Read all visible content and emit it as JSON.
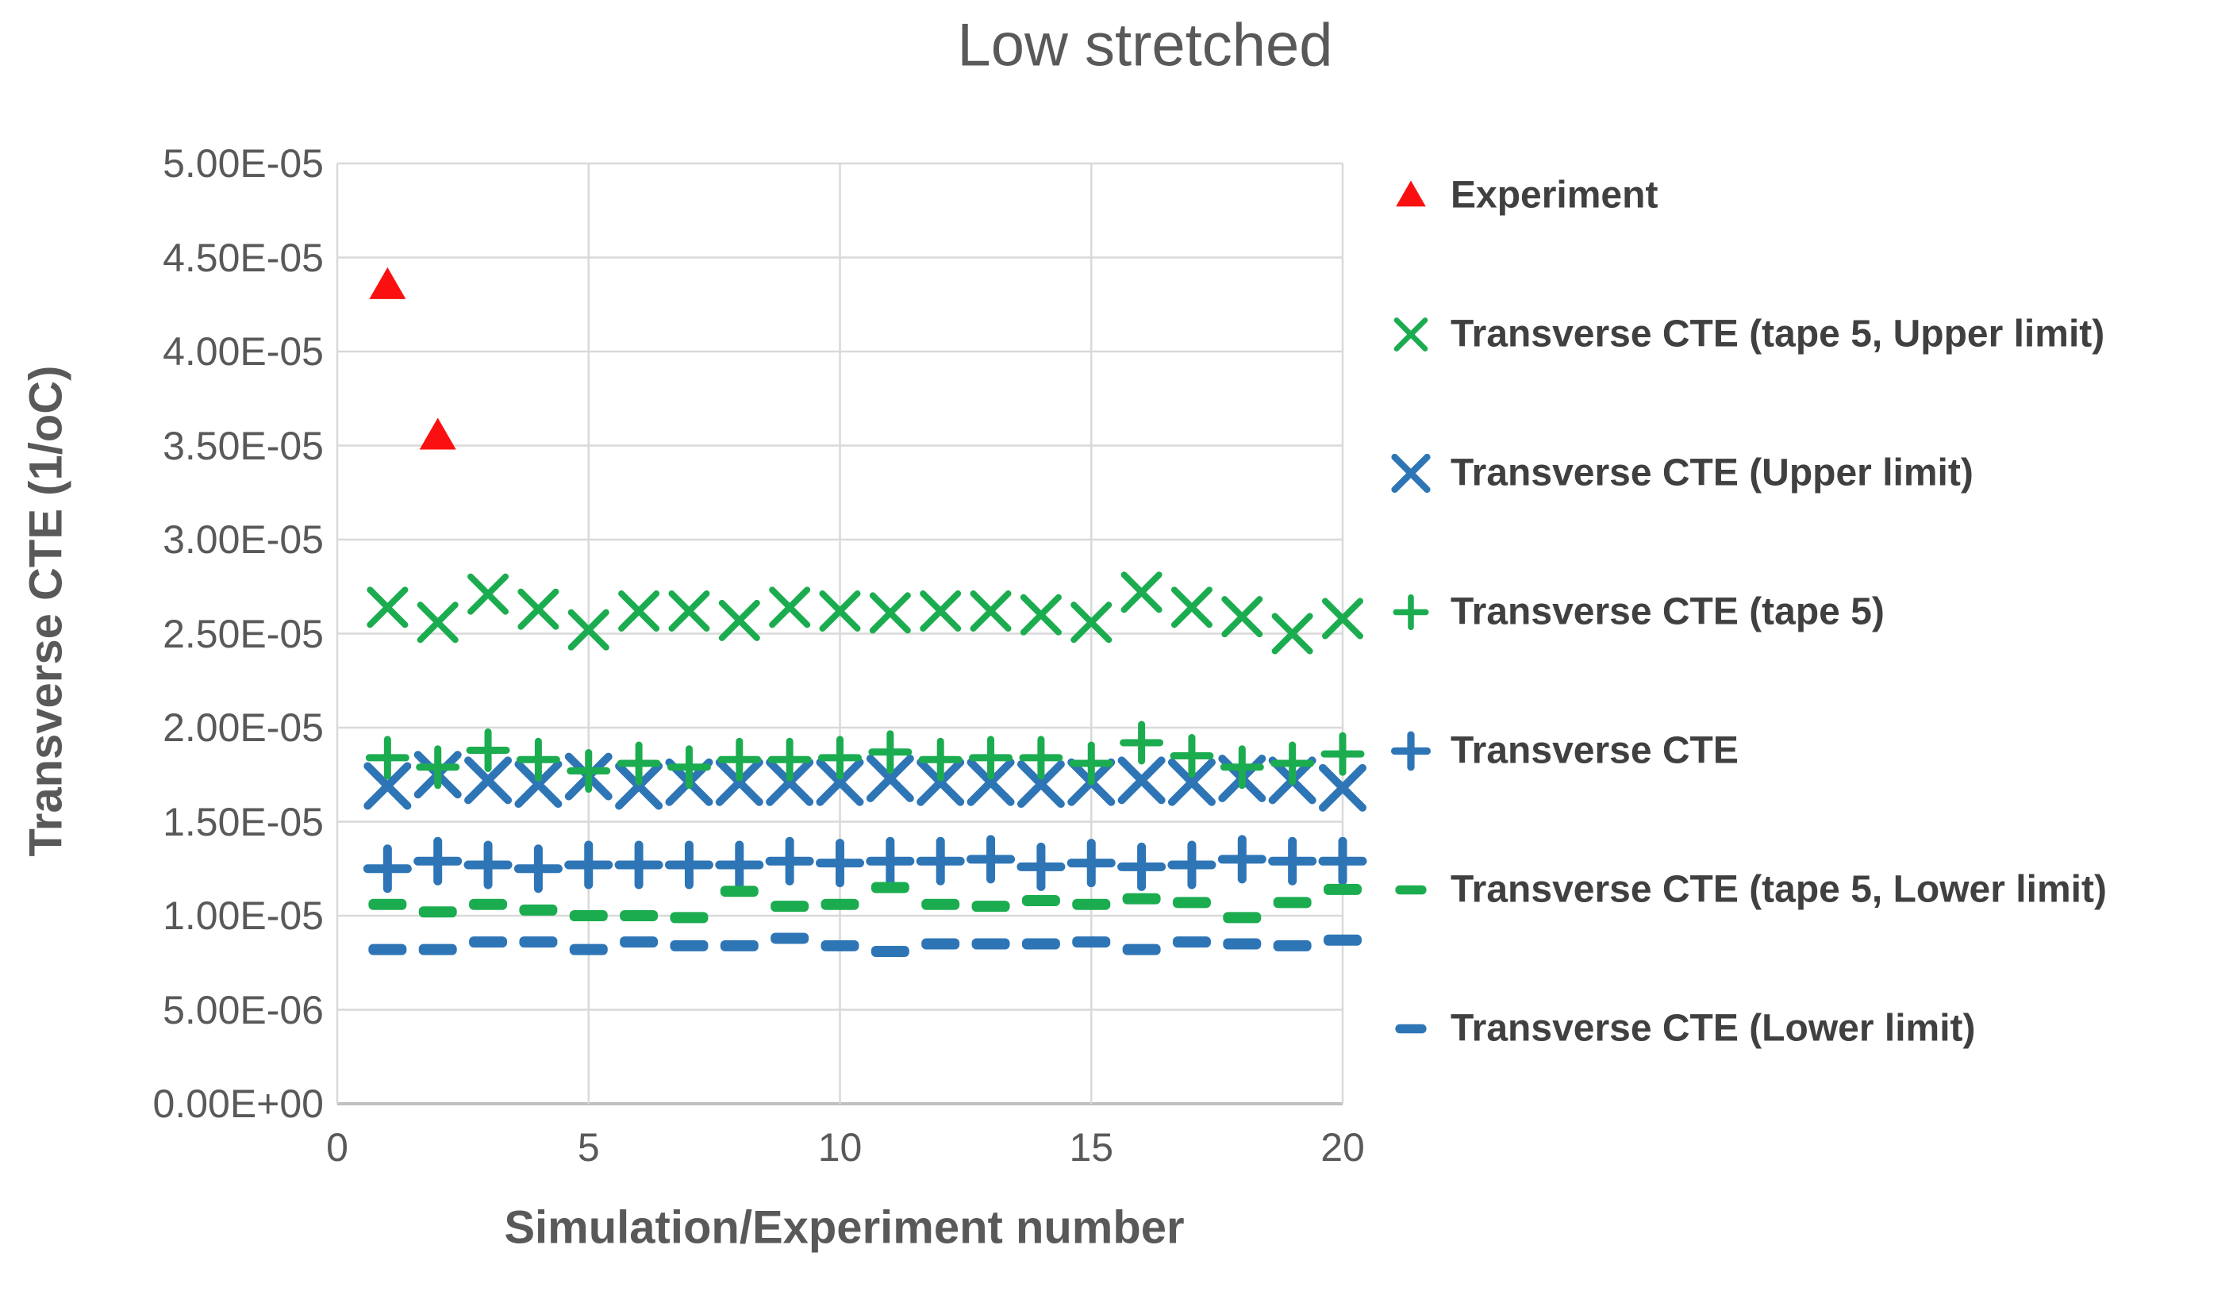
{
  "chart_data": {
    "type": "scatter",
    "title": "Low stretched",
    "xlabel": "Simulation/Experiment number",
    "ylabel": "Transverse CTE (1/oC)",
    "xlim": [
      0,
      20
    ],
    "ylim": [
      0,
      5e-05
    ],
    "y_value_unit": "1e-5 (1/oC)",
    "grid": true,
    "legend_position": "right",
    "xtick_values": [
      0,
      5,
      10,
      15,
      20
    ],
    "xtick_labels": [
      "0",
      "5",
      "10",
      "15",
      "20"
    ],
    "ytick_values_e5": [
      0,
      0.5,
      1,
      1.5,
      2,
      2.5,
      3,
      3.5,
      4,
      4.5,
      5
    ],
    "ytick_labels": [
      "0.00E+00",
      "5.00E-06",
      "1.00E-05",
      "1.50E-05",
      "2.00E-05",
      "2.50E-05",
      "3.00E-05",
      "3.50E-05",
      "4.00E-05",
      "4.50E-05",
      "5.00E-05"
    ],
    "series": [
      {
        "name": "Experiment",
        "marker": "triangle",
        "color": "#FA1010",
        "x": [
          1,
          2
        ],
        "y_e5": [
          4.35,
          3.55
        ]
      },
      {
        "name": "Transverse CTE (tape 5, Upper limit)",
        "marker": "x",
        "color": "#1CAC50",
        "x": [
          1,
          2,
          3,
          4,
          5,
          6,
          7,
          8,
          9,
          10,
          11,
          12,
          13,
          14,
          15,
          16,
          17,
          18,
          19,
          20
        ],
        "y_e5": [
          2.64,
          2.56,
          2.71,
          2.63,
          2.52,
          2.62,
          2.62,
          2.57,
          2.64,
          2.62,
          2.61,
          2.62,
          2.62,
          2.6,
          2.56,
          2.72,
          2.64,
          2.59,
          2.5,
          2.58
        ]
      },
      {
        "name": "Transverse CTE (Upper limit)",
        "marker": "x",
        "color": "#2E75B6",
        "x": [
          1,
          2,
          3,
          4,
          5,
          6,
          7,
          8,
          9,
          10,
          11,
          12,
          13,
          14,
          15,
          16,
          17,
          18,
          19,
          20
        ],
        "y_e5": [
          1.69,
          1.75,
          1.72,
          1.7,
          1.74,
          1.69,
          1.71,
          1.71,
          1.71,
          1.71,
          1.73,
          1.71,
          1.71,
          1.7,
          1.71,
          1.72,
          1.71,
          1.73,
          1.72,
          1.68
        ]
      },
      {
        "name": "Transverse CTE (tape 5)",
        "marker": "plus",
        "color": "#1CAC50",
        "x": [
          1,
          2,
          3,
          4,
          5,
          6,
          7,
          8,
          9,
          10,
          11,
          12,
          13,
          14,
          15,
          16,
          17,
          18,
          19,
          20
        ],
        "y_e5": [
          1.84,
          1.79,
          1.88,
          1.83,
          1.77,
          1.81,
          1.79,
          1.83,
          1.83,
          1.84,
          1.87,
          1.83,
          1.84,
          1.84,
          1.81,
          1.92,
          1.85,
          1.79,
          1.81,
          1.86
        ]
      },
      {
        "name": "Transverse CTE",
        "marker": "plus",
        "color": "#2E75B6",
        "x": [
          1,
          2,
          3,
          4,
          5,
          6,
          7,
          8,
          9,
          10,
          11,
          12,
          13,
          14,
          15,
          16,
          17,
          18,
          19,
          20
        ],
        "y_e5": [
          1.25,
          1.29,
          1.27,
          1.25,
          1.27,
          1.27,
          1.27,
          1.27,
          1.29,
          1.28,
          1.29,
          1.29,
          1.3,
          1.26,
          1.28,
          1.26,
          1.27,
          1.3,
          1.29,
          1.29
        ]
      },
      {
        "name": "Transverse CTE (tape 5, Lower limit)",
        "marker": "dash",
        "color": "#1CAC50",
        "x": [
          1,
          2,
          3,
          4,
          5,
          6,
          7,
          8,
          9,
          10,
          11,
          12,
          13,
          14,
          15,
          16,
          17,
          18,
          19,
          20
        ],
        "y_e5": [
          1.06,
          1.02,
          1.06,
          1.03,
          1.0,
          1.0,
          0.99,
          1.13,
          1.05,
          1.06,
          1.15,
          1.06,
          1.05,
          1.08,
          1.06,
          1.09,
          1.07,
          0.99,
          1.07,
          1.14
        ]
      },
      {
        "name": "Transverse CTE (Lower limit)",
        "marker": "dash",
        "color": "#2E75B6",
        "x": [
          1,
          2,
          3,
          4,
          5,
          6,
          7,
          8,
          9,
          10,
          11,
          12,
          13,
          14,
          15,
          16,
          17,
          18,
          19,
          20
        ],
        "y_e5": [
          0.82,
          0.82,
          0.86,
          0.86,
          0.82,
          0.86,
          0.84,
          0.84,
          0.88,
          0.84,
          0.81,
          0.85,
          0.85,
          0.85,
          0.86,
          0.82,
          0.86,
          0.85,
          0.84,
          0.87
        ]
      }
    ],
    "colors": {
      "red": "#FA1010",
      "green": "#1CAC50",
      "blue": "#2E75B6",
      "gridline": "#D9D9D9",
      "axis_line": "#BFBFBF",
      "tick_text": "#595959",
      "legend_text": "#404040"
    }
  }
}
